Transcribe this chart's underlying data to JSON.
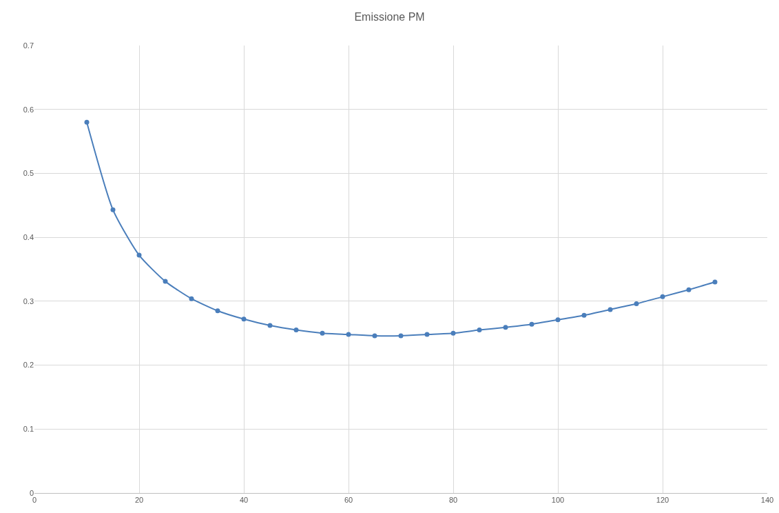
{
  "chart_data": {
    "type": "line",
    "title": "Emissione PM",
    "x": [
      10,
      15,
      20,
      25,
      30,
      35,
      40,
      45,
      50,
      55,
      60,
      65,
      70,
      75,
      80,
      85,
      90,
      95,
      100,
      105,
      110,
      115,
      120,
      125,
      130
    ],
    "series": [
      {
        "color": "#4a7ebb",
        "values": [
          0.58,
          0.443,
          0.372,
          0.331,
          0.304,
          0.285,
          0.272,
          0.262,
          0.255,
          0.25,
          0.248,
          0.246,
          0.246,
          0.248,
          0.25,
          0.255,
          0.259,
          0.264,
          0.271,
          0.278,
          0.287,
          0.296,
          0.307,
          0.318,
          0.33
        ]
      }
    ],
    "xlim": [
      0,
      140
    ],
    "xticks": [
      0,
      20,
      40,
      60,
      80,
      100,
      120,
      140
    ],
    "ylim": [
      0,
      0.7
    ],
    "yticks": [
      0,
      0.1,
      0.2,
      0.3,
      0.4,
      0.5,
      0.6,
      0.7
    ],
    "grid": true,
    "legend": false,
    "marker": "circle",
    "line_style": "solid"
  }
}
